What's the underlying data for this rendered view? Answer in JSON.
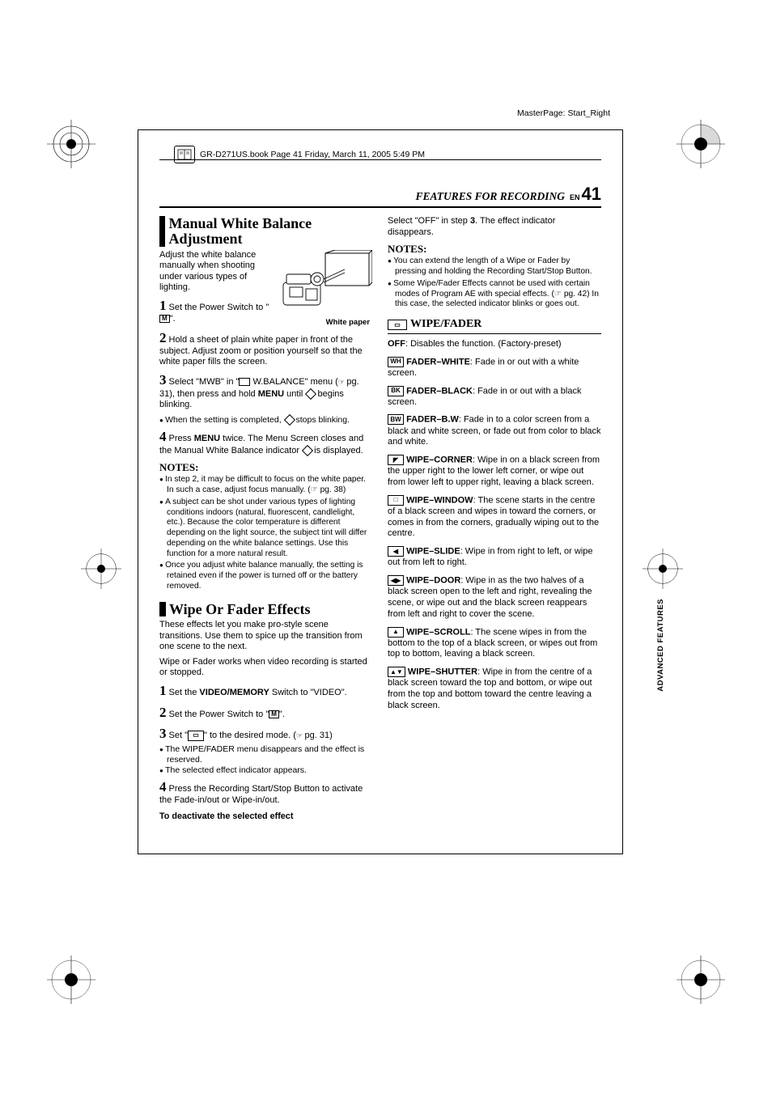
{
  "meta": {
    "masterpage": "MasterPage: Start_Right",
    "book_header": "GR-D271US.book  Page 41  Friday, March 11, 2005  5:49 PM"
  },
  "header": {
    "section": "FEATURES FOR RECORDING",
    "lang": "EN",
    "page": "41"
  },
  "side_label": "ADVANCED FEATURES",
  "left": {
    "h1": "Manual White Balance Adjustment",
    "intro": "Adjust the white balance manually when shooting under various types of lighting.",
    "fig_caption": "White paper",
    "step1": "Set the Power Switch to \"",
    "step1_end": "\".",
    "step2": "Hold a sheet of plain white paper in front of the subject. Adjust zoom or position yourself so that the white paper fills the screen.",
    "step3_a": "Select \"MWB\" in \"",
    "step3_b": " W.BALANCE\" menu (",
    "step3_pg": "pg. 31",
    "step3_c": "), then press and hold ",
    "step3_menu": "MENU",
    "step3_d": " until ",
    "step3_e": " begins blinking.",
    "step3_bullet": "When the setting is completed, ",
    "step3_bullet_end": " stops blinking.",
    "step4_a": "Press ",
    "step4_menu": "MENU",
    "step4_b": " twice. The Menu Screen closes and the Manual White Balance indicator ",
    "step4_c": " is displayed.",
    "notes_head": "NOTES:",
    "notes": [
      "In step 2, it may be difficult to focus on the white paper. In such a case, adjust focus manually. (☞ pg. 38)",
      "A subject can be shot under various types of lighting conditions indoors (natural, fluorescent, candlelight, etc.). Because the color temperature is different depending on the light source, the subject tint will differ depending on the white balance settings. Use this function for a more natural result.",
      "Once you adjust white balance manually, the setting is retained even if the power is turned off or the battery removed."
    ],
    "h2": "Wipe Or Fader Effects",
    "wipe_intro1": "These effects let you make pro-style scene transitions. Use them to spice up the transition from one scene to the next.",
    "wipe_intro2": "Wipe or Fader works when video recording is started or stopped.",
    "wstep1_a": "Set the ",
    "wstep1_b": "VIDEO/MEMORY",
    "wstep1_c": " Switch to \"VIDEO\".",
    "wstep2_a": "Set the Power Switch to \"",
    "wstep2_b": "\".",
    "wstep3_a": "Set \"",
    "wstep3_b": "\" to the desired mode. (",
    "wstep3_pg": "pg. 31",
    "wstep3_c": ")",
    "wstep3_bullets": [
      "The WIPE/FADER menu disappears and the effect is reserved.",
      "The selected effect indicator appears."
    ],
    "wstep4": "Press the Recording Start/Stop Button to activate the Fade-in/out or Wipe-in/out.",
    "deactivate": "To deactivate the selected effect"
  },
  "right": {
    "top": "Select \"OFF\" in step 3. The effect indicator disappears.",
    "notes_head": "NOTES:",
    "notes": [
      "You can extend the length of a Wipe or Fader by pressing and holding the Recording Start/Stop Button.",
      "Some Wipe/Fader Effects cannot be used with certain modes of Program AE with special effects. (☞ pg. 42) In this case, the selected indicator blinks or goes out."
    ],
    "wf_head": "WIPE/FADER",
    "entries": [
      {
        "icon": "",
        "label": "OFF",
        "text": ": Disables the function. (Factory-preset)"
      },
      {
        "icon": "WH",
        "label": "FADER–WHITE",
        "text": ": Fade in or out with a white screen."
      },
      {
        "icon": "BK",
        "label": "FADER–BLACK",
        "text": ": Fade in or out with a black screen."
      },
      {
        "icon": "BW",
        "label": "FADER–B.W",
        "text": ": Fade in to a color screen from a black and white screen, or fade out from color to black and white."
      },
      {
        "icon": "◤",
        "label": "WIPE–CORNER",
        "text": ": Wipe in on a black screen from the upper right to the lower left corner, or wipe out from lower left to upper right, leaving a black screen."
      },
      {
        "icon": "□",
        "label": "WIPE–WINDOW",
        "text": ": The scene starts in the centre of a black screen and wipes in toward the corners, or comes in from the corners, gradually wiping out to the centre."
      },
      {
        "icon": "◀",
        "label": "WIPE–SLIDE",
        "text": ": Wipe in from right to left, or wipe out from left to right."
      },
      {
        "icon": "◀▶",
        "label": "WIPE–DOOR",
        "text": ": Wipe in as the two halves of a black screen open to the left and right, revealing the scene, or wipe out and the black screen reappears from left and right to cover the scene."
      },
      {
        "icon": "▲",
        "label": "WIPE–SCROLL",
        "text": ": The scene wipes in from the bottom to the top of a black screen, or wipes out from top to bottom, leaving a black screen."
      },
      {
        "icon": "▲▼",
        "label": "WIPE–SHUTTER",
        "text": ": Wipe in from the centre of a black screen toward the top and bottom, or wipe out from the top and bottom toward the centre leaving a black screen."
      }
    ]
  },
  "colors": {
    "text": "#000000",
    "bg": "#ffffff"
  }
}
